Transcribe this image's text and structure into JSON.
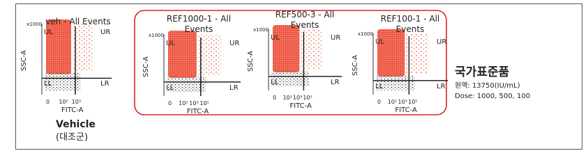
{
  "panels": [
    {
      "title": "veh - All Events",
      "scale": "x1000",
      "y_label": "SSC-A",
      "x_label": "FITC-A",
      "quadrants": [
        "UL",
        "UR",
        "LL",
        "LR"
      ],
      "x_ticks": [
        "0",
        "10²",
        "10³"
      ]
    },
    {
      "title": "REF1000-1 - All Events",
      "scale": "x1000",
      "y_label": "SSC-A",
      "x_label": "FITC-A",
      "quadrants": [
        "UL",
        "UR",
        "LL",
        "LR"
      ],
      "x_ticks": [
        "0",
        "10²",
        "10³",
        "10⁵"
      ]
    },
    {
      "title": "REF500-3 - All Events",
      "scale": "x1000",
      "y_label": "SSC-A",
      "x_label": "FITC-A",
      "quadrants": [
        "UL",
        "UR",
        "LL",
        "LR"
      ],
      "x_ticks": [
        "0",
        "10²",
        "10³",
        "10⁵"
      ]
    },
    {
      "title": "REF100-1 - All Events",
      "scale": "x1000",
      "y_label": "SSC-A",
      "x_label": "FITC-A",
      "quadrants": [
        "UL",
        "UR",
        "LL",
        "LR"
      ],
      "x_ticks": [
        "0",
        "10²",
        "10³",
        "10⁵"
      ]
    }
  ],
  "vehicle": {
    "label": "Vehicle",
    "sublabel": "(대조군)"
  },
  "reference": {
    "title": "국가표준품",
    "stock": "원액: 13750(IU/mL)",
    "dose": "Dose: 1000, 500, 100"
  }
}
